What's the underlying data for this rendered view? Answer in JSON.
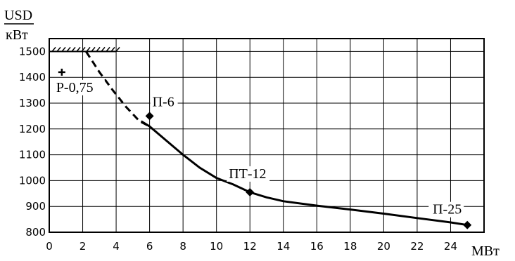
{
  "chart_data": {
    "type": "line",
    "ylabel_top": "USD",
    "ylabel_bottom": "кВт",
    "xlabel": "МВт",
    "xlim": [
      0,
      26
    ],
    "ylim": [
      800,
      1550
    ],
    "x_ticks": [
      0,
      2,
      4,
      6,
      8,
      10,
      12,
      14,
      16,
      18,
      20,
      22,
      24
    ],
    "y_ticks": [
      800,
      900,
      1000,
      1100,
      1200,
      1300,
      1400,
      1500
    ],
    "grid": true,
    "hatched_limit": {
      "y": 1500,
      "x_from": 0,
      "x_to": 4
    },
    "series": [
      {
        "style": "dashed",
        "x": [
          2.2,
          3.0,
          3.8,
          4.6,
          5.4,
          6.0
        ],
        "y": [
          1500,
          1420,
          1350,
          1285,
          1230,
          1210
        ]
      },
      {
        "style": "solid",
        "x": [
          5.5,
          6.0,
          7.0,
          8.0,
          9.0,
          10.0,
          11.0,
          12.0,
          13.0,
          14.0,
          16.0,
          18.0,
          20.0,
          22.0,
          24.0,
          25.0
        ],
        "y": [
          1230,
          1210,
          1155,
          1100,
          1050,
          1010,
          985,
          955,
          935,
          920,
          903,
          888,
          872,
          855,
          838,
          828
        ]
      }
    ],
    "points": [
      {
        "label": "Р-0,75",
        "x": 0.75,
        "y": 1420,
        "marker": "plus"
      },
      {
        "label": "П-6",
        "x": 6.0,
        "y": 1250,
        "marker": "diamond"
      },
      {
        "label": "ПТ-12",
        "x": 12.0,
        "y": 955,
        "marker": "diamond"
      },
      {
        "label": "П-25",
        "x": 25.0,
        "y": 828,
        "marker": "diamond"
      }
    ]
  }
}
